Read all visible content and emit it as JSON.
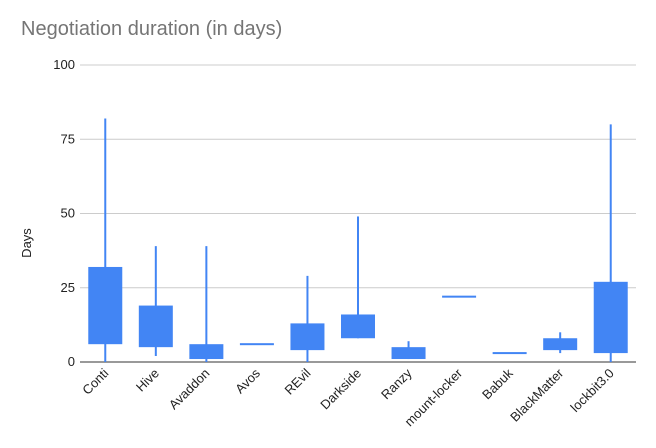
{
  "chart_data": {
    "type": "candlestick",
    "title": "Negotiation duration (in days)",
    "xlabel": "",
    "ylabel": "Days",
    "ylim": [
      0,
      100
    ],
    "yticks": [
      0,
      25,
      50,
      75,
      100
    ],
    "grid": true,
    "legend": "none",
    "color": "#4285f4",
    "categories": [
      "Conti",
      "Hive",
      "Avaddon",
      "Avos",
      "REvil",
      "Darkside",
      "Ranzy",
      "mount-locker",
      "Babuk",
      "BlackMatter",
      "lockbit3.0"
    ],
    "series": [
      {
        "low": [
          0,
          2,
          0,
          6,
          0,
          8,
          1,
          22,
          3,
          3,
          0
        ],
        "open": [
          6,
          5,
          1,
          6,
          4,
          8,
          1,
          22,
          3,
          4,
          3
        ],
        "close": [
          32,
          19,
          6,
          6,
          13,
          16,
          5,
          22,
          3,
          8,
          27
        ],
        "high": [
          82,
          39,
          39,
          6,
          29,
          49,
          7,
          22,
          3,
          10,
          80
        ]
      }
    ]
  }
}
